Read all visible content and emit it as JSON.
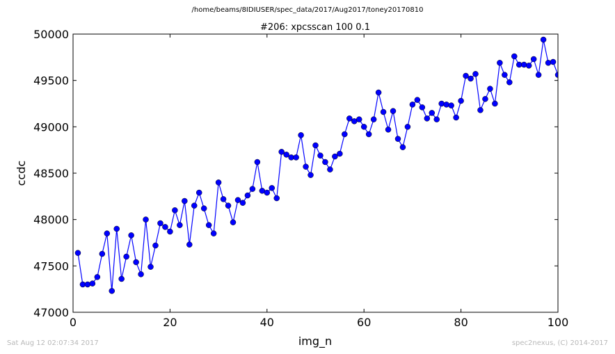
{
  "header": {
    "suptitle": "/home/beams/8IDIUSER/spec_data/2017/Aug2017/toney20170810"
  },
  "footer": {
    "timestamp": "Sat Aug 12 02:07:34 2017",
    "credit": "spec2nexus, (C) 2014-2017"
  },
  "chart_data": {
    "type": "line",
    "title": "#206: xpcsscan 100 0.1",
    "xlabel": "img_n",
    "ylabel": "ccdc",
    "xlim": [
      0,
      100
    ],
    "ylim": [
      47000,
      50000
    ],
    "xticks": [
      "0",
      "20",
      "40",
      "60",
      "80",
      "100"
    ],
    "yticks": [
      "47000",
      "47500",
      "48000",
      "48500",
      "49000",
      "49500",
      "50000"
    ],
    "grid": false,
    "line_color": "#0000ff",
    "marker_color": "#0000ff",
    "marker": "circle",
    "series": [
      {
        "x": [
          1,
          2,
          3,
          4,
          5,
          6,
          7,
          8,
          9,
          10,
          11,
          12,
          13,
          14,
          15,
          16,
          17,
          18,
          19,
          20,
          21,
          22,
          23,
          24,
          25,
          26,
          27,
          28,
          29,
          30,
          31,
          32,
          33,
          34,
          35,
          36,
          37,
          38,
          39,
          40,
          41,
          42,
          43,
          44,
          45,
          46,
          47,
          48,
          49,
          50,
          51,
          52,
          53,
          54,
          55,
          56,
          57,
          58,
          59,
          60,
          61,
          62,
          63,
          64,
          65,
          66,
          67,
          68,
          69,
          70,
          71,
          72,
          73,
          74,
          75,
          76,
          77,
          78,
          79,
          80,
          81,
          82,
          83,
          84,
          85,
          86,
          87,
          88,
          89,
          90,
          91,
          92,
          93,
          94,
          95,
          96,
          97,
          98,
          99,
          100
        ],
        "y": [
          47640,
          47300,
          47300,
          47310,
          47380,
          47630,
          47850,
          47230,
          47900,
          47360,
          47600,
          47830,
          47540,
          47410,
          48000,
          47490,
          47720,
          47960,
          47920,
          47870,
          48100,
          47940,
          48200,
          47730,
          48150,
          48290,
          48120,
          47940,
          47850,
          48400,
          48220,
          48150,
          47970,
          48210,
          48180,
          48260,
          48330,
          48620,
          48310,
          48290,
          48340,
          48230,
          48730,
          48700,
          48670,
          48670,
          48910,
          48570,
          48480,
          48800,
          48690,
          48620,
          48540,
          48680,
          48710,
          48920,
          49090,
          49060,
          49080,
          49000,
          48920,
          49080,
          49370,
          49160,
          48970,
          49170,
          48870,
          48780,
          49000,
          49240,
          49290,
          49210,
          49090,
          49150,
          49080,
          49250,
          49240,
          49230,
          49100,
          49280,
          49550,
          49520,
          49570,
          49180,
          49300,
          49410,
          49250,
          49690,
          49560,
          49480,
          49760,
          49670,
          49670,
          49660,
          49730,
          49560,
          49940,
          49690,
          49700,
          49560
        ]
      }
    ]
  }
}
